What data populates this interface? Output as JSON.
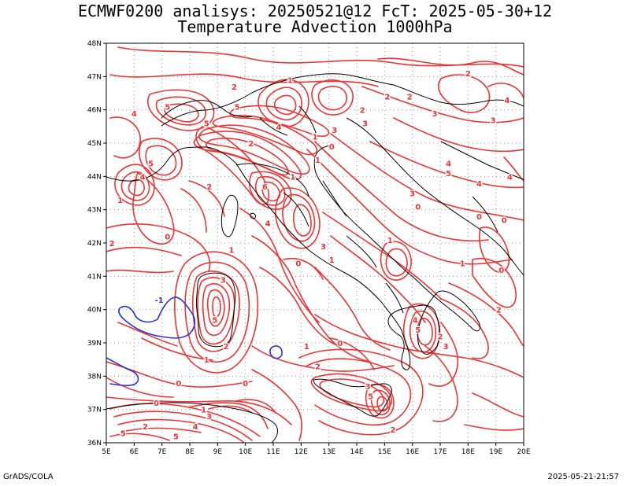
{
  "header": {
    "title_line1": "ECMWF0200 analisys: 20250521@12 FcT: 2025-05-30+12",
    "title_line2": "Temperature Advection 1000hPa"
  },
  "footer": {
    "left": "GrADS/COLA",
    "right": "2025-05-21-21:57"
  },
  "map": {
    "lon_range": [
      5,
      20
    ],
    "lat_range": [
      36,
      48
    ],
    "lon_ticks": [
      "5E",
      "6E",
      "7E",
      "8E",
      "9E",
      "10E",
      "11E",
      "12E",
      "13E",
      "14E",
      "15E",
      "16E",
      "17E",
      "18E",
      "19E",
      "20E"
    ],
    "lat_ticks": [
      "36N",
      "37N",
      "38N",
      "39N",
      "40N",
      "41N",
      "42N",
      "43N",
      "44N",
      "45N",
      "46N",
      "47N",
      "48N"
    ],
    "gridlines": true,
    "colors": {
      "positive_contour": "#ee3333",
      "negative_contour": "#2233dd",
      "coast": "#000000",
      "grid": "#999999"
    },
    "contour_labels": [
      {
        "text": "1",
        "lon": 11.6,
        "lat": 46.9,
        "sign": "pos"
      },
      {
        "text": "2",
        "lon": 9.6,
        "lat": 46.7,
        "sign": "pos"
      },
      {
        "text": "5",
        "lon": 7.2,
        "lat": 46.1,
        "sign": "pos"
      },
      {
        "text": "4",
        "lon": 6.0,
        "lat": 45.9,
        "sign": "pos"
      },
      {
        "text": "5",
        "lon": 9.7,
        "lat": 46.1,
        "sign": "pos"
      },
      {
        "text": "4",
        "lon": 11.2,
        "lat": 45.5,
        "sign": "pos"
      },
      {
        "text": "2",
        "lon": 10.2,
        "lat": 45.0,
        "sign": "pos"
      },
      {
        "text": "3",
        "lon": 13.2,
        "lat": 45.4,
        "sign": "pos"
      },
      {
        "text": "1",
        "lon": 12.5,
        "lat": 45.2,
        "sign": "pos"
      },
      {
        "text": "0",
        "lon": 13.1,
        "lat": 44.9,
        "sign": "pos"
      },
      {
        "text": "1",
        "lon": 12.6,
        "lat": 44.5,
        "sign": "pos"
      },
      {
        "text": "2",
        "lon": 14.2,
        "lat": 46.0,
        "sign": "pos"
      },
      {
        "text": "3",
        "lon": 14.3,
        "lat": 45.6,
        "sign": "pos"
      },
      {
        "text": "2",
        "lon": 15.1,
        "lat": 46.4,
        "sign": "pos"
      },
      {
        "text": "2",
        "lon": 15.9,
        "lat": 46.4,
        "sign": "pos"
      },
      {
        "text": "3",
        "lon": 16.8,
        "lat": 45.9,
        "sign": "pos"
      },
      {
        "text": "3",
        "lon": 18.9,
        "lat": 45.7,
        "sign": "pos"
      },
      {
        "text": "4",
        "lon": 19.4,
        "lat": 46.3,
        "sign": "pos"
      },
      {
        "text": "2",
        "lon": 18.0,
        "lat": 47.1,
        "sign": "pos"
      },
      {
        "text": "4",
        "lon": 17.3,
        "lat": 44.4,
        "sign": "pos"
      },
      {
        "text": "5",
        "lon": 17.3,
        "lat": 44.1,
        "sign": "pos"
      },
      {
        "text": "4",
        "lon": 18.4,
        "lat": 43.8,
        "sign": "pos"
      },
      {
        "text": "4",
        "lon": 19.5,
        "lat": 44.0,
        "sign": "pos"
      },
      {
        "text": "3",
        "lon": 16.0,
        "lat": 43.5,
        "sign": "pos"
      },
      {
        "text": "0",
        "lon": 16.2,
        "lat": 43.1,
        "sign": "pos"
      },
      {
        "text": "1",
        "lon": 15.2,
        "lat": 42.1,
        "sign": "pos"
      },
      {
        "text": "0",
        "lon": 18.4,
        "lat": 42.8,
        "sign": "pos"
      },
      {
        "text": "0",
        "lon": 19.3,
        "lat": 42.7,
        "sign": "pos"
      },
      {
        "text": "1",
        "lon": 17.8,
        "lat": 41.4,
        "sign": "pos"
      },
      {
        "text": "0",
        "lon": 19.2,
        "lat": 41.2,
        "sign": "pos"
      },
      {
        "text": "2",
        "lon": 19.1,
        "lat": 40.0,
        "sign": "pos"
      },
      {
        "text": "5",
        "lon": 16.2,
        "lat": 39.4,
        "sign": "pos"
      },
      {
        "text": "2",
        "lon": 17.0,
        "lat": 39.2,
        "sign": "pos"
      },
      {
        "text": "3",
        "lon": 17.2,
        "lat": 38.9,
        "sign": "pos"
      },
      {
        "text": "4",
        "lon": 16.1,
        "lat": 39.7,
        "sign": "pos"
      },
      {
        "text": "1",
        "lon": 12.2,
        "lat": 38.9,
        "sign": "pos"
      },
      {
        "text": "0",
        "lon": 13.4,
        "lat": 39.0,
        "sign": "pos"
      },
      {
        "text": "2",
        "lon": 12.6,
        "lat": 38.3,
        "sign": "pos"
      },
      {
        "text": "3",
        "lon": 14.4,
        "lat": 37.7,
        "sign": "pos"
      },
      {
        "text": "5",
        "lon": 14.5,
        "lat": 37.4,
        "sign": "pos"
      },
      {
        "text": "2",
        "lon": 15.3,
        "lat": 36.4,
        "sign": "pos"
      },
      {
        "text": "1",
        "lon": 13.1,
        "lat": 41.5,
        "sign": "pos"
      },
      {
        "text": "3",
        "lon": 12.8,
        "lat": 41.9,
        "sign": "pos"
      },
      {
        "text": "0",
        "lon": 11.9,
        "lat": 41.4,
        "sign": "pos"
      },
      {
        "text": "1",
        "lon": 11.7,
        "lat": 44.0,
        "sign": "pos"
      },
      {
        "text": "6",
        "lon": 10.7,
        "lat": 43.7,
        "sign": "pos"
      },
      {
        "text": "4",
        "lon": 10.8,
        "lat": 42.6,
        "sign": "pos"
      },
      {
        "text": "2",
        "lon": 8.7,
        "lat": 43.7,
        "sign": "pos"
      },
      {
        "text": "5",
        "lon": 8.6,
        "lat": 45.6,
        "sign": "pos"
      },
      {
        "text": "1",
        "lon": 5.5,
        "lat": 43.3,
        "sign": "pos"
      },
      {
        "text": "4",
        "lon": 6.3,
        "lat": 44.0,
        "sign": "pos"
      },
      {
        "text": "5",
        "lon": 6.6,
        "lat": 44.4,
        "sign": "pos"
      },
      {
        "text": "0",
        "lon": 7.2,
        "lat": 42.2,
        "sign": "pos"
      },
      {
        "text": "2",
        "lon": 5.2,
        "lat": 42.0,
        "sign": "pos"
      },
      {
        "text": "1",
        "lon": 9.5,
        "lat": 41.8,
        "sign": "pos"
      },
      {
        "text": "3",
        "lon": 9.2,
        "lat": 40.9,
        "sign": "pos"
      },
      {
        "text": "5",
        "lon": 8.9,
        "lat": 39.7,
        "sign": "pos"
      },
      {
        "text": "2",
        "lon": 9.3,
        "lat": 38.9,
        "sign": "pos"
      },
      {
        "text": "1",
        "lon": 8.6,
        "lat": 38.5,
        "sign": "pos"
      },
      {
        "text": "0",
        "lon": 10.0,
        "lat": 37.8,
        "sign": "pos"
      },
      {
        "text": "0",
        "lon": 7.6,
        "lat": 37.8,
        "sign": "pos"
      },
      {
        "text": "0",
        "lon": 6.8,
        "lat": 37.2,
        "sign": "pos"
      },
      {
        "text": "1",
        "lon": 8.5,
        "lat": 37.0,
        "sign": "pos"
      },
      {
        "text": "3",
        "lon": 8.7,
        "lat": 36.8,
        "sign": "pos"
      },
      {
        "text": "4",
        "lon": 8.2,
        "lat": 36.5,
        "sign": "pos"
      },
      {
        "text": "5",
        "lon": 5.6,
        "lat": 36.3,
        "sign": "pos"
      },
      {
        "text": "2",
        "lon": 6.4,
        "lat": 36.5,
        "sign": "pos"
      },
      {
        "text": "5",
        "lon": 7.5,
        "lat": 36.2,
        "sign": "pos"
      },
      {
        "text": "-1",
        "lon": 6.9,
        "lat": 40.3,
        "sign": "neg"
      }
    ]
  }
}
